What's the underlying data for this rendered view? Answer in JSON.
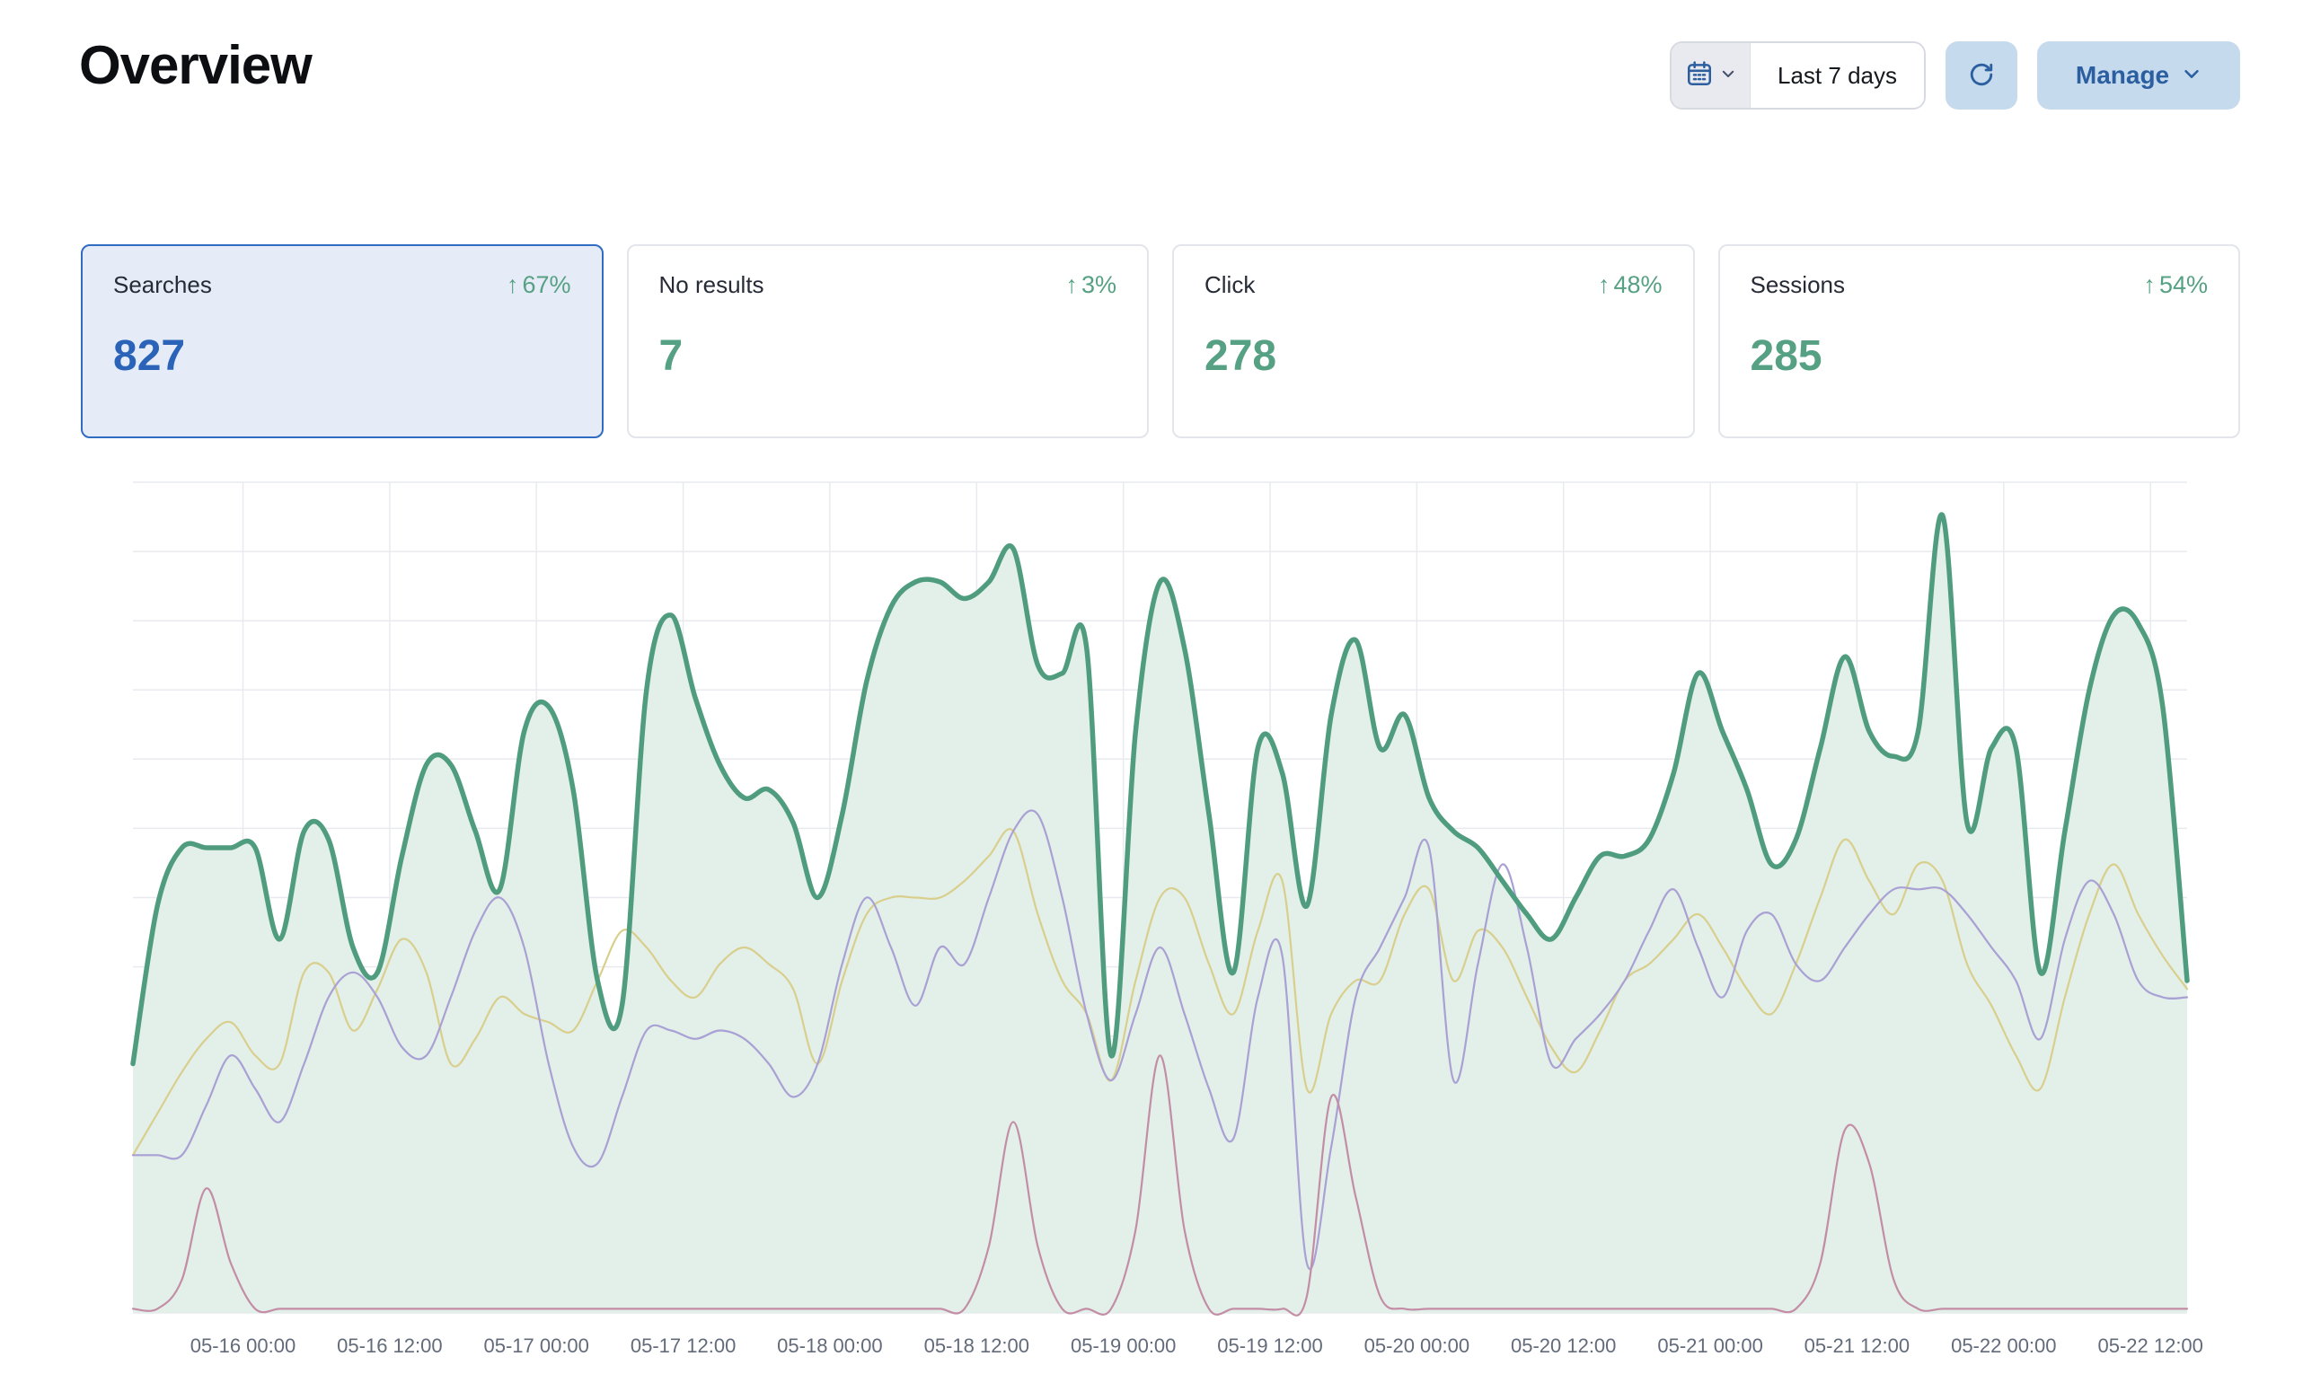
{
  "header": {
    "title": "Overview",
    "date_range_label": "Last 7 days",
    "manage_label": "Manage"
  },
  "icons": {
    "trend_up_arrow": "↑"
  },
  "stats": [
    {
      "label": "Searches",
      "value": "827",
      "change": "67%",
      "selected": true
    },
    {
      "label": "No results",
      "value": "7",
      "change": "3%",
      "selected": false
    },
    {
      "label": "Click",
      "value": "278",
      "change": "48%",
      "selected": false
    },
    {
      "label": "Sessions",
      "value": "285",
      "change": "54%",
      "selected": false
    }
  ],
  "colors": {
    "accent_blue": "#2a63b8",
    "button_blue_bg": "#c6daee",
    "button_blue_text": "#2b5f9f",
    "positive_green": "#56a183",
    "selected_card_bg": "#e6ecf7",
    "selected_card_border": "#2f6cc2"
  },
  "chart_data": {
    "type": "area",
    "title": "",
    "xlabel": "",
    "ylabel": "",
    "grid": true,
    "legend": "none",
    "ylim": [
      0,
      100
    ],
    "y_gridline_rows": 12,
    "grid_color": "#e9eaef",
    "axis_label_color": "#636b7a",
    "x_tick_labels": [
      "05-16 00:00",
      "05-16 12:00",
      "05-17 00:00",
      "05-17 12:00",
      "05-18 00:00",
      "05-18 12:00",
      "05-19 00:00",
      "05-19 12:00",
      "05-20 00:00",
      "05-20 12:00",
      "05-21 00:00",
      "05-21 12:00",
      "05-22 00:00",
      "05-22 12:00"
    ],
    "series": [
      {
        "name": "searches",
        "color": "#4f9d7e",
        "width": 5.5,
        "area": true,
        "area_color": "#e3efe9",
        "values": [
          30,
          49,
          56,
          56,
          56,
          56,
          45,
          58,
          57,
          44,
          41,
          55,
          66,
          66,
          58,
          51,
          70,
          73,
          63,
          40,
          37,
          75,
          84,
          74,
          66,
          62,
          63,
          59,
          50,
          60,
          76,
          85,
          88,
          88,
          86,
          88,
          92,
          78,
          77,
          80,
          31,
          70,
          88,
          80,
          60,
          41,
          68,
          65,
          49,
          72,
          81,
          68,
          72,
          62,
          58,
          56,
          52,
          48,
          45,
          50,
          55,
          55,
          57,
          65,
          77,
          70,
          63,
          54,
          57,
          68,
          79,
          70,
          67,
          70,
          96,
          59,
          68,
          68,
          41,
          58,
          75,
          84,
          83,
          73,
          40
        ]
      },
      {
        "name": "sessions",
        "color": "#d9cf8d",
        "width": 2.2,
        "area": false,
        "values": [
          19,
          24,
          29,
          33,
          35,
          31,
          30,
          41,
          41,
          34,
          39,
          45,
          41,
          30,
          33,
          38,
          36,
          35,
          34,
          40,
          46,
          44,
          40,
          38,
          42,
          44,
          42,
          39,
          30,
          40,
          48,
          50,
          50,
          50,
          52,
          55,
          58,
          48,
          40,
          36,
          28,
          40,
          50,
          50,
          42,
          36,
          46,
          52,
          27,
          36,
          40,
          40,
          48,
          51,
          40,
          46,
          44,
          38,
          32,
          29,
          34,
          40,
          42,
          45,
          48,
          44,
          39,
          36,
          42,
          50,
          57,
          52,
          48,
          54,
          52,
          42,
          37,
          31,
          27,
          38,
          48,
          54,
          48,
          43,
          39
        ]
      },
      {
        "name": "clicks",
        "color": "#a9a0d4",
        "width": 2.2,
        "area": false,
        "values": [
          19,
          19,
          19,
          25,
          31,
          27,
          23,
          30,
          38,
          41,
          38,
          32,
          31,
          38,
          46,
          50,
          44,
          30,
          20,
          18,
          26,
          34,
          34,
          33,
          34,
          33,
          30,
          26,
          30,
          42,
          50,
          44,
          37,
          44,
          42,
          50,
          58,
          60,
          50,
          36,
          28,
          36,
          44,
          36,
          27,
          21,
          38,
          43,
          6,
          20,
          38,
          44,
          50,
          56,
          28,
          42,
          54,
          44,
          30,
          33,
          36,
          40,
          46,
          51,
          44,
          38,
          46,
          48,
          42,
          40,
          44,
          48,
          51,
          51,
          51,
          48,
          44,
          40,
          33,
          45,
          52,
          48,
          40,
          38,
          38
        ]
      },
      {
        "name": "no_results",
        "color": "#c38da5",
        "width": 2.2,
        "area": false,
        "values": [
          0.5,
          0.5,
          4,
          15,
          6,
          0.5,
          0.5,
          0.5,
          0.5,
          0.5,
          0.5,
          0.5,
          0.5,
          0.5,
          0.5,
          0.5,
          0.5,
          0.5,
          0.5,
          0.5,
          0.5,
          0.5,
          0.5,
          0.5,
          0.5,
          0.5,
          0.5,
          0.5,
          0.5,
          0.5,
          0.5,
          0.5,
          0.5,
          0.5,
          0.5,
          8,
          23,
          8,
          0.5,
          0.5,
          0.5,
          10,
          31,
          10,
          0.5,
          0.5,
          0.5,
          0.5,
          2,
          26,
          14,
          2,
          0.5,
          0.5,
          0.5,
          0.5,
          0.5,
          0.5,
          0.5,
          0.5,
          0.5,
          0.5,
          0.5,
          0.5,
          0.5,
          0.5,
          0.5,
          0.5,
          0.5,
          6,
          22,
          18,
          4,
          0.5,
          0.5,
          0.5,
          0.5,
          0.5,
          0.5,
          0.5,
          0.5,
          0.5,
          0.5,
          0.5,
          0.5
        ]
      }
    ]
  }
}
